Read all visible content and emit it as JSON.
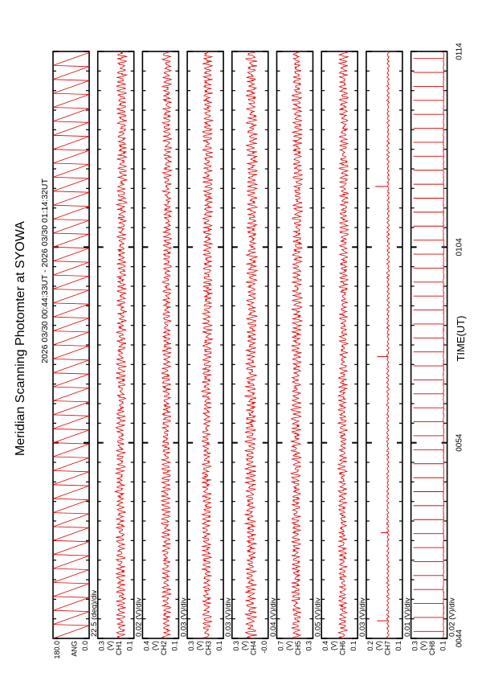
{
  "title": "Meridian Scanning Photomter at SYOWA",
  "time_range": "2026 03/30 00:44:33UT - 2026 03/30 01:14:32UT",
  "chart_data": {
    "type": "line",
    "orientation": "rotated-90",
    "title": "Meridian Scanning Photomter at SYOWA",
    "subtitle": "2026 03/30 00:44:33UT - 2026 03/30 01:14:32UT",
    "xlabel": "TIME(UT)",
    "x_ticks": [
      "0044",
      "0054",
      "0104",
      "0114"
    ],
    "line_color": "#dd0000",
    "panels": [
      {
        "key": "ANG",
        "scale": "22.5 (deg)/div",
        "ticks": [
          "180.0",
          "0.0"
        ],
        "ylim": [
          0,
          180
        ],
        "pattern": "sawtooth",
        "mean": 90,
        "amp": 90
      },
      {
        "key": "CH1",
        "unit": "(V)",
        "scale": "0.02 (V)/div",
        "ticks": [
          "0.3",
          "0.1"
        ],
        "ylim": [
          0.1,
          0.3
        ],
        "pattern": "noise",
        "mean": 0.17,
        "amp": 0.03,
        "spikes": []
      },
      {
        "key": "CH2",
        "unit": "(V)",
        "scale": "0.03 (V)/div",
        "ticks": [
          "0.4",
          "0.1"
        ],
        "ylim": [
          0.1,
          0.4
        ],
        "pattern": "noise",
        "mean": 0.2,
        "amp": 0.04,
        "spikes": []
      },
      {
        "key": "CH3",
        "unit": "(V)",
        "scale": "0.03 (V)/div",
        "ticks": [
          "0.3",
          "0.1"
        ],
        "ylim": [
          0.1,
          0.3
        ],
        "pattern": "noise",
        "mean": 0.19,
        "amp": 0.03,
        "spikes": []
      },
      {
        "key": "CH4",
        "unit": "(V)",
        "scale": "0.04 (V)/div",
        "ticks": [
          "0.3",
          "-0.0"
        ],
        "ylim": [
          0.0,
          0.3
        ],
        "pattern": "noise",
        "mean": 0.14,
        "amp": 0.05,
        "spikes": []
      },
      {
        "key": "CH5",
        "unit": "(V)",
        "scale": "0.05 (V)/div",
        "ticks": [
          "0.7",
          "0.3"
        ],
        "ylim": [
          0.3,
          0.7
        ],
        "pattern": "noise",
        "mean": 0.48,
        "amp": 0.06,
        "spikes": []
      },
      {
        "key": "CH6",
        "unit": "(V)",
        "scale": "0.03 (V)/div",
        "ticks": [
          "0.4",
          "0.1"
        ],
        "ylim": [
          0.1,
          0.4
        ],
        "pattern": "noise",
        "mean": 0.22,
        "amp": 0.04,
        "spikes": []
      },
      {
        "key": "CH7",
        "unit": "(V)",
        "scale": "0.01 (V)/div",
        "ticks": [
          "0.2",
          "0.1"
        ],
        "ylim": [
          0.1,
          0.2
        ],
        "pattern": "flat",
        "mean": 0.14,
        "amp": 0.004,
        "spikes": [
          {
            "t": 0.03,
            "v": 0.17
          },
          {
            "t": 0.48,
            "v": 0.17
          },
          {
            "t": 0.77,
            "v": 0.175
          },
          {
            "t": 0.18,
            "v": 0.16
          }
        ]
      },
      {
        "key": "CH8",
        "unit": "(V)",
        "scale": "0.02 (V)/div",
        "ticks": [
          "0.3",
          "0.1"
        ],
        "ylim": [
          0.1,
          0.3
        ],
        "pattern": "pulses",
        "mean": 0.12,
        "amp": 0.005,
        "spikes": []
      }
    ]
  }
}
